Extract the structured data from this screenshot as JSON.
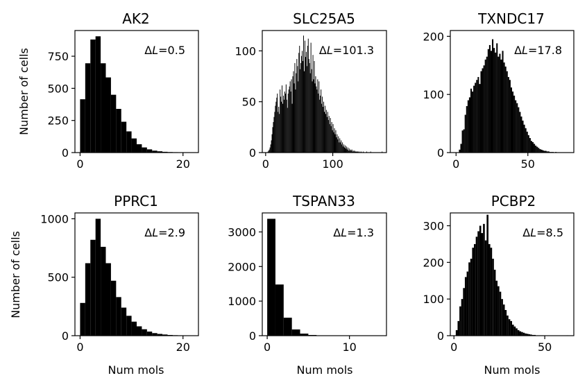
{
  "figure": {
    "ylabel_shared": "Number of cells",
    "xlabel_shared": "Num mols"
  },
  "chart_data": [
    {
      "type": "bar",
      "title": "AK2",
      "annotation_symbol": "Δ",
      "annotation_var": "L",
      "annotation_value": "=0.5",
      "xlabel": "",
      "ylabel": "Number of cells",
      "xlim": [
        -1,
        23
      ],
      "ylim": [
        0,
        950
      ],
      "xticks": [
        0,
        20
      ],
      "yticks": [
        0,
        250,
        500,
        750
      ],
      "bin_start": 0,
      "bin_width": 1,
      "values": [
        415,
        695,
        880,
        905,
        695,
        585,
        450,
        340,
        240,
        165,
        110,
        65,
        40,
        25,
        15,
        10,
        6,
        4,
        3,
        2,
        1
      ]
    },
    {
      "type": "bar",
      "title": "SLC25A5",
      "annotation_symbol": "Δ",
      "annotation_var": "L",
      "annotation_value": "=101.3",
      "xlabel": "",
      "ylabel": "",
      "xlim": [
        -5,
        180
      ],
      "ylim": [
        0,
        120
      ],
      "xticks": [
        0,
        100
      ],
      "yticks": [
        0,
        50,
        100
      ],
      "bin_start": 3,
      "bin_width": 1,
      "values": [
        1,
        2,
        3,
        5,
        8,
        12,
        18,
        25,
        30,
        35,
        40,
        46,
        50,
        54,
        58,
        40,
        45,
        38,
        62,
        55,
        50,
        66,
        48,
        56,
        52,
        60,
        58,
        67,
        52,
        44,
        58,
        62,
        65,
        70,
        60,
        72,
        48,
        75,
        80,
        68,
        88,
        62,
        78,
        92,
        85,
        70,
        98,
        105,
        82,
        88,
        95,
        100,
        90,
        115,
        80,
        110,
        94,
        99,
        85,
        105,
        112,
        92,
        88,
        78,
        108,
        82,
        70,
        96,
        72,
        90,
        68,
        75,
        65,
        62,
        72,
        58,
        70,
        52,
        56,
        62,
        48,
        55,
        45,
        50,
        40,
        46,
        38,
        42,
        35,
        40,
        32,
        36,
        28,
        34,
        26,
        30,
        22,
        28,
        20,
        24,
        18,
        22,
        15,
        18,
        13,
        16,
        10,
        14,
        10,
        12,
        8,
        10,
        6,
        8,
        5,
        7,
        4,
        6,
        3,
        5,
        2,
        4,
        2,
        3,
        2,
        3,
        1,
        2,
        1,
        2,
        1,
        1,
        1,
        1,
        1,
        1,
        0,
        1,
        0,
        1,
        0,
        0,
        1,
        0,
        0,
        0,
        0,
        1,
        0,
        0,
        0,
        0,
        0,
        1,
        0,
        0,
        0,
        0,
        0,
        0,
        0,
        0,
        0,
        0,
        0,
        0,
        0,
        0,
        0,
        0,
        1
      ]
    },
    {
      "type": "bar",
      "title": "TXNDC17",
      "annotation_symbol": "Δ",
      "annotation_var": "L",
      "annotation_value": "=17.8",
      "xlabel": "",
      "ylabel": "",
      "xlim": [
        -4,
        82
      ],
      "ylim": [
        0,
        210
      ],
      "xticks": [
        0,
        50
      ],
      "yticks": [
        0,
        100,
        200
      ],
      "bin_start": 2,
      "bin_width": 1,
      "values": [
        5,
        15,
        38,
        40,
        65,
        80,
        90,
        95,
        110,
        105,
        115,
        120,
        125,
        130,
        118,
        140,
        145,
        150,
        160,
        165,
        178,
        185,
        175,
        195,
        180,
        172,
        188,
        165,
        170,
        160,
        175,
        155,
        148,
        140,
        130,
        125,
        112,
        105,
        98,
        90,
        85,
        78,
        70,
        62,
        55,
        48,
        42,
        36,
        30,
        25,
        20,
        18,
        15,
        12,
        10,
        8,
        6,
        5,
        4,
        3,
        3,
        2,
        2,
        1,
        1,
        1,
        0,
        1
      ]
    },
    {
      "type": "bar",
      "title": "PPRC1",
      "annotation_symbol": "Δ",
      "annotation_var": "L",
      "annotation_value": "=2.9",
      "xlabel": "Num mols",
      "ylabel": "Number of cells",
      "xlim": [
        -1,
        23
      ],
      "ylim": [
        0,
        1050
      ],
      "xticks": [
        0,
        20
      ],
      "yticks": [
        0,
        500,
        1000
      ],
      "bin_start": 0,
      "bin_width": 1,
      "values": [
        280,
        620,
        820,
        1000,
        760,
        620,
        470,
        330,
        240,
        170,
        120,
        80,
        55,
        35,
        22,
        15,
        10,
        6,
        4,
        3,
        2
      ]
    },
    {
      "type": "bar",
      "title": "TSPAN33",
      "annotation_symbol": "Δ",
      "annotation_var": "L",
      "annotation_value": "=1.3",
      "xlabel": "Num mols",
      "ylabel": "",
      "xlim": [
        -0.6,
        14.5
      ],
      "ylim": [
        0,
        3550
      ],
      "xticks": [
        0,
        10
      ],
      "yticks": [
        0,
        1000,
        2000,
        3000
      ],
      "bin_start": 0,
      "bin_width": 1,
      "values": [
        3380,
        1480,
        520,
        180,
        60,
        20,
        8,
        4,
        2,
        1,
        1,
        0,
        0,
        1
      ]
    },
    {
      "type": "bar",
      "title": "PCBP2",
      "annotation_symbol": "Δ",
      "annotation_var": "L",
      "annotation_value": "=8.5",
      "xlabel": "Num mols",
      "ylabel": "",
      "xlim": [
        -2,
        66
      ],
      "ylim": [
        0,
        335
      ],
      "xticks": [
        0,
        50
      ],
      "yticks": [
        0,
        100,
        200,
        300
      ],
      "bin_start": 1,
      "bin_width": 1,
      "values": [
        15,
        40,
        80,
        100,
        130,
        160,
        175,
        200,
        210,
        240,
        250,
        270,
        285,
        300,
        280,
        305,
        260,
        330,
        250,
        240,
        210,
        180,
        150,
        135,
        120,
        100,
        85,
        70,
        55,
        45,
        40,
        30,
        25,
        20,
        15,
        12,
        10,
        8,
        6,
        5,
        4,
        3,
        2,
        2,
        1,
        1,
        1,
        1,
        0,
        0,
        0,
        0,
        0,
        0,
        0,
        0,
        0,
        0,
        0,
        0,
        0,
        1
      ]
    }
  ]
}
